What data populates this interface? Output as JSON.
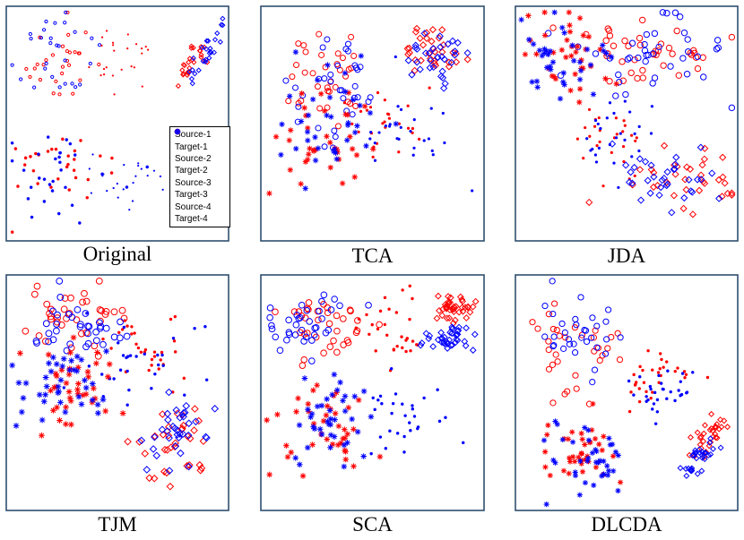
{
  "figure": {
    "colors": {
      "source": "#ff0000",
      "target": "#0000ff",
      "frame": "#2f4f6f"
    },
    "legend": [
      {
        "label": "Source-1",
        "marker": "circle",
        "color": "#ff0000"
      },
      {
        "label": "Target-1",
        "marker": "circle",
        "color": "#0000ff"
      },
      {
        "label": "Source-2",
        "marker": "dot",
        "color": "#ff0000"
      },
      {
        "label": "Target-2",
        "marker": "dot",
        "color": "#0000ff"
      },
      {
        "label": "Source-3",
        "marker": "cross",
        "color": "#ff0000"
      },
      {
        "label": "Target-3",
        "marker": "cross",
        "color": "#0000ff"
      },
      {
        "label": "Source-4",
        "marker": "diamond",
        "color": "#ff0000"
      },
      {
        "label": "Target-4",
        "marker": "diamond",
        "color": "#0000ff"
      }
    ]
  },
  "chart_data": [
    {
      "type": "scatter",
      "title": "Original",
      "xlim": [
        0,
        100
      ],
      "ylim": [
        0,
        100
      ],
      "legend": "right",
      "clusters": [
        {
          "name": "Source-1",
          "marker": "circle",
          "color": "#ff0000",
          "x": 22,
          "y": 78,
          "sx": 9,
          "sy": 10,
          "n": 28,
          "r": 1.6
        },
        {
          "name": "Target-1",
          "marker": "circle",
          "color": "#0000ff",
          "x": 22,
          "y": 80,
          "sx": 10,
          "sy": 10,
          "n": 28,
          "r": 1.6
        },
        {
          "name": "Source-2",
          "marker": "dot",
          "color": "#ff0000",
          "x": 50,
          "y": 77,
          "sx": 10,
          "sy": 8,
          "n": 24,
          "r": 1.1
        },
        {
          "name": "Target-2",
          "marker": "dot",
          "color": "#0000ff",
          "x": 57,
          "y": 28,
          "sx": 12,
          "sy": 7,
          "n": 24,
          "r": 1.1
        },
        {
          "name": "Source-3",
          "marker": "cross",
          "color": "#ff0000",
          "x": 24,
          "y": 30,
          "sx": 12,
          "sy": 9,
          "n": 30,
          "r": 1.8
        },
        {
          "name": "Target-3",
          "marker": "cross",
          "color": "#0000ff",
          "x": 22,
          "y": 30,
          "sx": 12,
          "sy": 9,
          "n": 30,
          "r": 1.8
        },
        {
          "name": "Source-4",
          "marker": "diamond",
          "color": "#ff0000",
          "x": 84,
          "y": 76,
          "sx": 2,
          "sy": 6,
          "n": 26,
          "r": 2.4,
          "tilt": -0.6
        },
        {
          "name": "Target-4",
          "marker": "diamond",
          "color": "#0000ff",
          "x": 90,
          "y": 79,
          "sx": 2,
          "sy": 8,
          "n": 26,
          "r": 2.4,
          "tilt": -0.6
        }
      ]
    },
    {
      "type": "scatter",
      "title": "TCA",
      "xlim": [
        0,
        100
      ],
      "ylim": [
        0,
        100
      ],
      "clusters": [
        {
          "name": "Source-1",
          "marker": "circle",
          "color": "#ff0000",
          "x": 32,
          "y": 70,
          "sx": 11,
          "sy": 9,
          "n": 34,
          "r": 3
        },
        {
          "name": "Target-1",
          "marker": "circle",
          "color": "#0000ff",
          "x": 33,
          "y": 66,
          "sx": 11,
          "sy": 10,
          "n": 34,
          "r": 3
        },
        {
          "name": "Source-2",
          "marker": "dot",
          "color": "#ff0000",
          "x": 55,
          "y": 52,
          "sx": 11,
          "sy": 8,
          "n": 26,
          "r": 1.6
        },
        {
          "name": "Target-2",
          "marker": "dot",
          "color": "#0000ff",
          "x": 60,
          "y": 44,
          "sx": 13,
          "sy": 10,
          "n": 26,
          "r": 1.6
        },
        {
          "name": "Source-3",
          "marker": "cross",
          "color": "#ff0000",
          "x": 28,
          "y": 44,
          "sx": 11,
          "sy": 13,
          "n": 36,
          "r": 3.2
        },
        {
          "name": "Target-3",
          "marker": "cross",
          "color": "#0000ff",
          "x": 30,
          "y": 47,
          "sx": 11,
          "sy": 13,
          "n": 36,
          "r": 3.2
        },
        {
          "name": "Source-4",
          "marker": "diamond",
          "color": "#ff0000",
          "x": 76,
          "y": 82,
          "sx": 7,
          "sy": 5,
          "n": 32,
          "r": 3.4
        },
        {
          "name": "Target-4",
          "marker": "diamond",
          "color": "#0000ff",
          "x": 78,
          "y": 78,
          "sx": 6,
          "sy": 6,
          "n": 32,
          "r": 3.4
        }
      ]
    },
    {
      "type": "scatter",
      "title": "JDA",
      "xlim": [
        0,
        100
      ],
      "ylim": [
        0,
        100
      ],
      "clusters": [
        {
          "name": "Source-1",
          "marker": "circle",
          "color": "#ff0000",
          "x": 60,
          "y": 82,
          "sx": 18,
          "sy": 8,
          "n": 40,
          "r": 3.2
        },
        {
          "name": "Target-1",
          "marker": "circle",
          "color": "#0000ff",
          "x": 58,
          "y": 80,
          "sx": 18,
          "sy": 9,
          "n": 40,
          "r": 3.2
        },
        {
          "name": "Source-2",
          "marker": "dot",
          "color": "#ff0000",
          "x": 44,
          "y": 44,
          "sx": 8,
          "sy": 9,
          "n": 26,
          "r": 1.6
        },
        {
          "name": "Target-2",
          "marker": "dot",
          "color": "#0000ff",
          "x": 46,
          "y": 46,
          "sx": 8,
          "sy": 8,
          "n": 26,
          "r": 1.6
        },
        {
          "name": "Source-3",
          "marker": "cross",
          "color": "#ff0000",
          "x": 24,
          "y": 80,
          "sx": 11,
          "sy": 9,
          "n": 36,
          "r": 3.2
        },
        {
          "name": "Target-3",
          "marker": "cross",
          "color": "#0000ff",
          "x": 22,
          "y": 78,
          "sx": 11,
          "sy": 9,
          "n": 36,
          "r": 3.2
        },
        {
          "name": "Source-4",
          "marker": "diamond",
          "color": "#ff0000",
          "x": 75,
          "y": 26,
          "sx": 13,
          "sy": 8,
          "n": 34,
          "r": 3.4
        },
        {
          "name": "Target-4",
          "marker": "diamond",
          "color": "#0000ff",
          "x": 70,
          "y": 26,
          "sx": 12,
          "sy": 8,
          "n": 34,
          "r": 3.4
        }
      ]
    },
    {
      "type": "scatter",
      "title": "TJM",
      "xlim": [
        0,
        100
      ],
      "ylim": [
        0,
        100
      ],
      "clusters": [
        {
          "name": "Source-1",
          "marker": "circle",
          "color": "#ff0000",
          "x": 28,
          "y": 82,
          "sx": 11,
          "sy": 8,
          "n": 36,
          "r": 3.4
        },
        {
          "name": "Target-1",
          "marker": "circle",
          "color": "#0000ff",
          "x": 30,
          "y": 80,
          "sx": 11,
          "sy": 8,
          "n": 36,
          "r": 3.4
        },
        {
          "name": "Source-2",
          "marker": "dot",
          "color": "#ff0000",
          "x": 61,
          "y": 70,
          "sx": 10,
          "sy": 9,
          "n": 30,
          "r": 1.7
        },
        {
          "name": "Target-2",
          "marker": "dot",
          "color": "#0000ff",
          "x": 58,
          "y": 64,
          "sx": 11,
          "sy": 10,
          "n": 30,
          "r": 1.7
        },
        {
          "name": "Source-3",
          "marker": "cross",
          "color": "#ff0000",
          "x": 26,
          "y": 50,
          "sx": 11,
          "sy": 9,
          "n": 40,
          "r": 3.4
        },
        {
          "name": "Target-3",
          "marker": "cross",
          "color": "#0000ff",
          "x": 26,
          "y": 52,
          "sx": 10,
          "sy": 9,
          "n": 40,
          "r": 3.4
        },
        {
          "name": "Source-4",
          "marker": "diamond",
          "color": "#ff0000",
          "x": 77,
          "y": 24,
          "sx": 8,
          "sy": 9,
          "n": 34,
          "r": 3.6
        },
        {
          "name": "Target-4",
          "marker": "diamond",
          "color": "#0000ff",
          "x": 78,
          "y": 30,
          "sx": 7,
          "sy": 9,
          "n": 34,
          "r": 3.6
        }
      ]
    },
    {
      "type": "scatter",
      "title": "SCA",
      "xlim": [
        0,
        100
      ],
      "ylim": [
        0,
        100
      ],
      "clusters": [
        {
          "name": "Source-1",
          "marker": "circle",
          "color": "#ff0000",
          "x": 26,
          "y": 80,
          "sx": 11,
          "sy": 7,
          "n": 36,
          "r": 3.3
        },
        {
          "name": "Target-1",
          "marker": "circle",
          "color": "#0000ff",
          "x": 24,
          "y": 78,
          "sx": 11,
          "sy": 7,
          "n": 36,
          "r": 3.3
        },
        {
          "name": "Source-2",
          "marker": "dot",
          "color": "#ff0000",
          "x": 57,
          "y": 77,
          "sx": 10,
          "sy": 8,
          "n": 30,
          "r": 1.7
        },
        {
          "name": "Target-2",
          "marker": "dot",
          "color": "#0000ff",
          "x": 60,
          "y": 40,
          "sx": 12,
          "sy": 9,
          "n": 30,
          "r": 1.7
        },
        {
          "name": "Source-3",
          "marker": "cross",
          "color": "#ff0000",
          "x": 26,
          "y": 34,
          "sx": 11,
          "sy": 11,
          "n": 40,
          "r": 3.3
        },
        {
          "name": "Target-3",
          "marker": "cross",
          "color": "#0000ff",
          "x": 28,
          "y": 36,
          "sx": 10,
          "sy": 10,
          "n": 40,
          "r": 3.3
        },
        {
          "name": "Source-4",
          "marker": "diamond",
          "color": "#ff0000",
          "x": 87,
          "y": 86,
          "sx": 4,
          "sy": 3,
          "n": 40,
          "r": 3.2
        },
        {
          "name": "Target-4",
          "marker": "diamond",
          "color": "#0000ff",
          "x": 85,
          "y": 73,
          "sx": 5,
          "sy": 3,
          "n": 40,
          "r": 3.2
        }
      ]
    },
    {
      "type": "scatter",
      "title": "DLCDA",
      "xlim": [
        0,
        100
      ],
      "ylim": [
        0,
        100
      ],
      "clusters": [
        {
          "name": "Source-1",
          "marker": "circle",
          "color": "#ff0000",
          "x": 28,
          "y": 72,
          "sx": 10,
          "sy": 11,
          "n": 32,
          "r": 3.1
        },
        {
          "name": "Target-1",
          "marker": "circle",
          "color": "#0000ff",
          "x": 27,
          "y": 76,
          "sx": 9,
          "sy": 9,
          "n": 32,
          "r": 3.1
        },
        {
          "name": "Source-2",
          "marker": "dot",
          "color": "#ff0000",
          "x": 62,
          "y": 56,
          "sx": 9,
          "sy": 6,
          "n": 30,
          "r": 1.7
        },
        {
          "name": "Target-2",
          "marker": "dot",
          "color": "#0000ff",
          "x": 64,
          "y": 50,
          "sx": 9,
          "sy": 6,
          "n": 30,
          "r": 1.7
        },
        {
          "name": "Source-3",
          "marker": "cross",
          "color": "#ff0000",
          "x": 30,
          "y": 26,
          "sx": 10,
          "sy": 9,
          "n": 38,
          "r": 3.1
        },
        {
          "name": "Target-3",
          "marker": "cross",
          "color": "#0000ff",
          "x": 30,
          "y": 24,
          "sx": 10,
          "sy": 9,
          "n": 38,
          "r": 3.1
        },
        {
          "name": "Source-4",
          "marker": "diamond",
          "color": "#ff0000",
          "x": 87,
          "y": 30,
          "sx": 2.2,
          "sy": 6,
          "n": 32,
          "r": 2.8,
          "tilt": -0.75
        },
        {
          "name": "Target-4",
          "marker": "diamond",
          "color": "#0000ff",
          "x": 84,
          "y": 22,
          "sx": 2.2,
          "sy": 7,
          "n": 32,
          "r": 2.8,
          "tilt": -0.75
        }
      ]
    }
  ]
}
